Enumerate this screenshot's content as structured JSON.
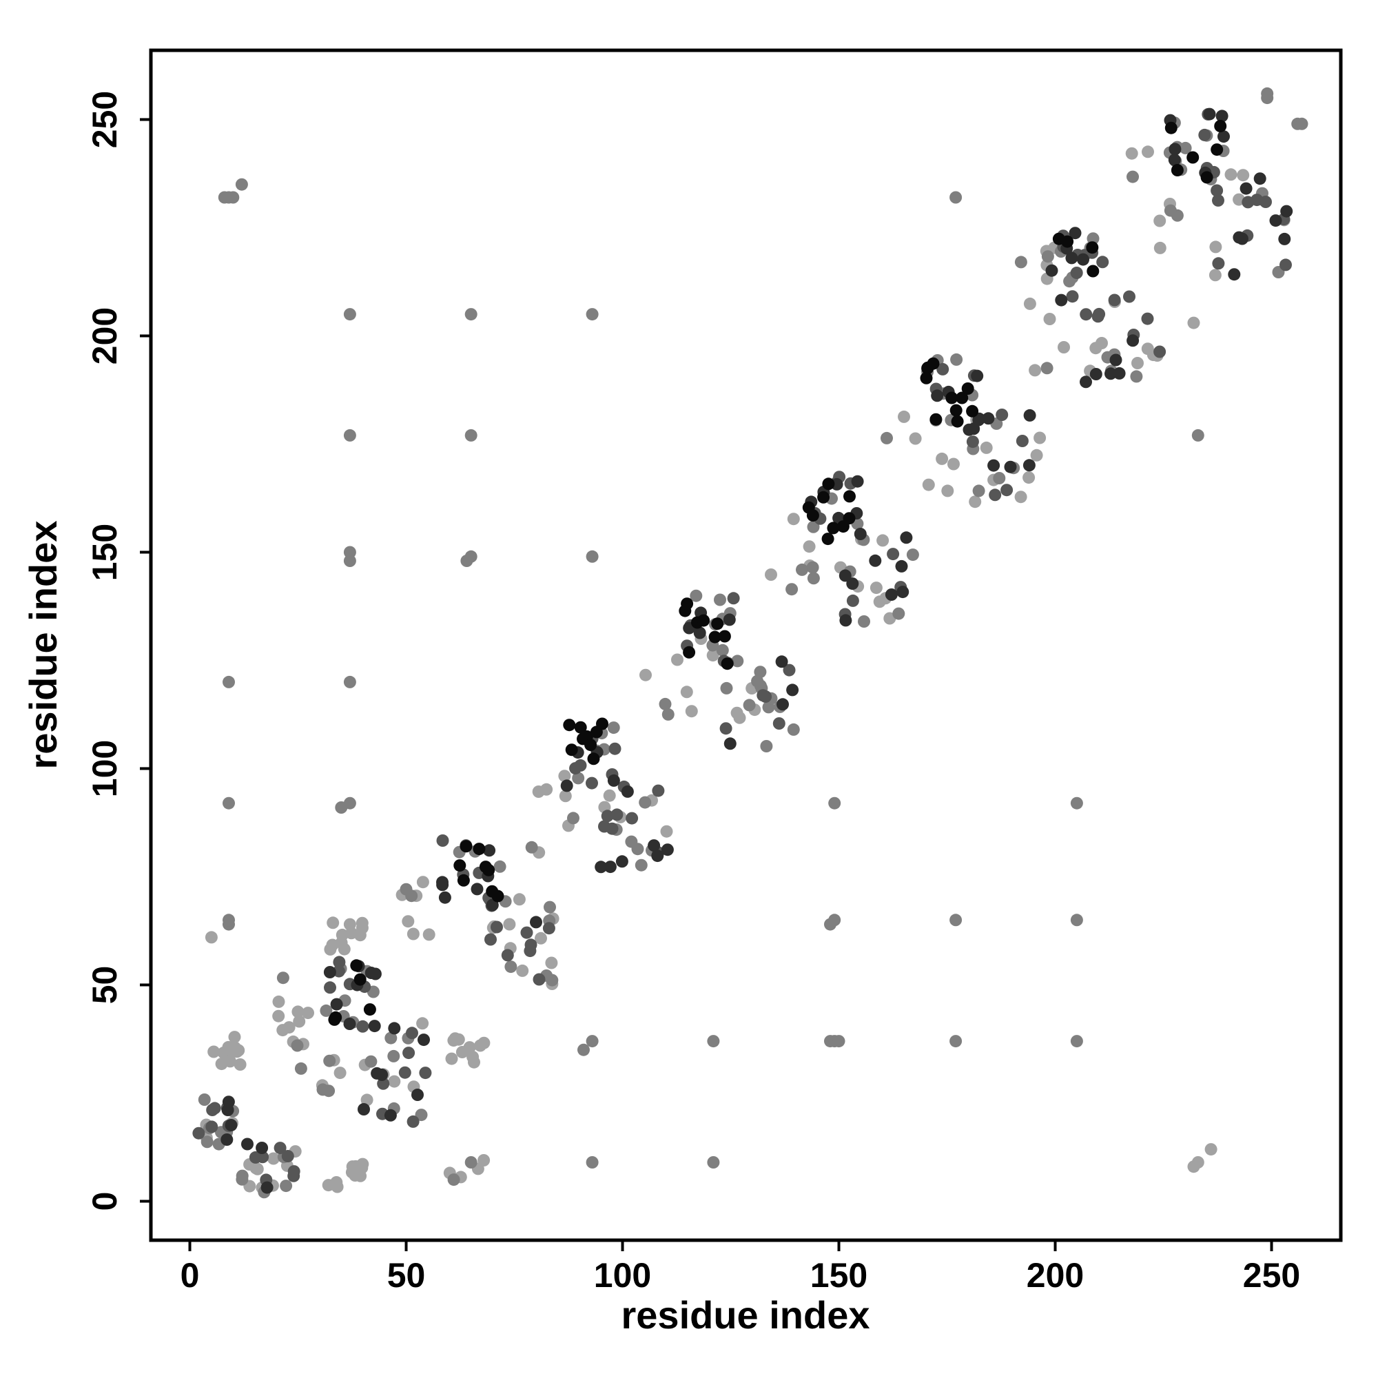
{
  "chart_data": {
    "type": "scatter",
    "title": "",
    "xlabel": "residue index",
    "ylabel": "residue index",
    "xlim": [
      -9,
      266
    ],
    "ylim": [
      -9,
      266
    ],
    "x_ticks": [
      "0",
      "50",
      "100",
      "150",
      "250"
    ],
    "x_tick_values": [
      0,
      50,
      100,
      150,
      250
    ],
    "x_tick_200": "200",
    "y_ticks": [
      "0",
      "50",
      "100",
      "150",
      "200",
      "250"
    ],
    "y_tick_values": [
      0,
      50,
      100,
      150,
      200,
      250
    ],
    "grid": false,
    "legend": "none",
    "point_colors": {
      "black": "#0a0a0a",
      "dark": "#2e2e2e",
      "mid": "#565656",
      "grey": "#7f7f7f",
      "light": "#a2a2a2"
    },
    "clusters": [
      {
        "x": [
          2,
          10
        ],
        "y": [
          12,
          25
        ],
        "level": "dark",
        "n": 22
      },
      {
        "x": [
          4,
          12
        ],
        "y": [
          30,
          38
        ],
        "level": "light",
        "n": 12
      },
      {
        "x": [
          12,
          27
        ],
        "y": [
          2,
          14
        ],
        "level": "dark",
        "n": 24
      },
      {
        "x": [
          18,
          28
        ],
        "y": [
          30,
          52
        ],
        "level": "grey",
        "n": 12
      },
      {
        "x": [
          31,
          43
        ],
        "y": [
          40,
          56
        ],
        "level": "black",
        "n": 26
      },
      {
        "x": [
          32,
          40
        ],
        "y": [
          3,
          10
        ],
        "level": "light",
        "n": 12
      },
      {
        "x": [
          32,
          40
        ],
        "y": [
          58,
          66
        ],
        "level": "light",
        "n": 10
      },
      {
        "x": [
          30,
          38
        ],
        "y": [
          24,
          34
        ],
        "level": "grey",
        "n": 6
      },
      {
        "x": [
          40,
          55
        ],
        "y": [
          18,
          42
        ],
        "level": "dark",
        "n": 26
      },
      {
        "x": [
          49,
          56
        ],
        "y": [
          58,
          75
        ],
        "level": "grey",
        "n": 8
      },
      {
        "x": [
          58,
          72
        ],
        "y": [
          68,
          84
        ],
        "level": "black",
        "n": 24
      },
      {
        "x": [
          59,
          68
        ],
        "y": [
          32,
          38
        ],
        "level": "light",
        "n": 10
      },
      {
        "x": [
          60,
          68
        ],
        "y": [
          5,
          10
        ],
        "level": "grey",
        "n": 4
      },
      {
        "x": [
          68,
          85
        ],
        "y": [
          50,
          70
        ],
        "level": "dark",
        "n": 26
      },
      {
        "x": [
          78,
          90
        ],
        "y": [
          80,
          103
        ],
        "level": "grey",
        "n": 8
      },
      {
        "x": [
          87,
          99
        ],
        "y": [
          96,
          112
        ],
        "level": "black",
        "n": 24
      },
      {
        "x": [
          95,
          113
        ],
        "y": [
          77,
          98
        ],
        "level": "dark",
        "n": 26
      },
      {
        "x": [
          105,
          122
        ],
        "y": [
          108,
          131
        ],
        "level": "grey",
        "n": 8
      },
      {
        "x": [
          114,
          126
        ],
        "y": [
          124,
          140
        ],
        "level": "black",
        "n": 24
      },
      {
        "x": [
          123,
          140
        ],
        "y": [
          105,
          126
        ],
        "level": "dark",
        "n": 26
      },
      {
        "x": [
          133,
          145
        ],
        "y": [
          136,
          160
        ],
        "level": "grey",
        "n": 8
      },
      {
        "x": [
          143,
          155
        ],
        "y": [
          152,
          168
        ],
        "level": "black",
        "n": 24
      },
      {
        "x": [
          150,
          168
        ],
        "y": [
          133,
          155
        ],
        "level": "dark",
        "n": 26
      },
      {
        "x": [
          161,
          177
        ],
        "y": [
          164,
          188
        ],
        "level": "grey",
        "n": 8
      },
      {
        "x": [
          170,
          183
        ],
        "y": [
          180,
          196
        ],
        "level": "black",
        "n": 24
      },
      {
        "x": [
          179,
          197
        ],
        "y": [
          161,
          182
        ],
        "level": "dark",
        "n": 26
      },
      {
        "x": [
          189,
          202
        ],
        "y": [
          192,
          224
        ],
        "level": "grey",
        "n": 10
      },
      {
        "x": [
          198,
          211
        ],
        "y": [
          208,
          224
        ],
        "level": "black",
        "n": 24
      },
      {
        "x": [
          207,
          225
        ],
        "y": [
          189,
          210
        ],
        "level": "dark",
        "n": 26
      },
      {
        "x": [
          216,
          230
        ],
        "y": [
          220,
          245
        ],
        "level": "grey",
        "n": 10
      },
      {
        "x": [
          226,
          239
        ],
        "y": [
          236,
          252
        ],
        "level": "black",
        "n": 24
      },
      {
        "x": [
          235,
          254
        ],
        "y": [
          214,
          238
        ],
        "level": "dark",
        "n": 26
      }
    ],
    "points": [
      {
        "x": 5,
        "y": 61,
        "level": "light"
      },
      {
        "x": 9,
        "y": 64,
        "level": "grey"
      },
      {
        "x": 9,
        "y": 65,
        "level": "grey"
      },
      {
        "x": 9,
        "y": 120,
        "level": "grey"
      },
      {
        "x": 9,
        "y": 92,
        "level": "grey"
      },
      {
        "x": 8,
        "y": 232,
        "level": "grey"
      },
      {
        "x": 9,
        "y": 232,
        "level": "grey"
      },
      {
        "x": 10,
        "y": 232,
        "level": "grey"
      },
      {
        "x": 12,
        "y": 235,
        "level": "grey"
      },
      {
        "x": 37,
        "y": 205,
        "level": "grey"
      },
      {
        "x": 37,
        "y": 177,
        "level": "grey"
      },
      {
        "x": 37,
        "y": 150,
        "level": "grey"
      },
      {
        "x": 37,
        "y": 148,
        "level": "grey"
      },
      {
        "x": 37,
        "y": 120,
        "level": "grey"
      },
      {
        "x": 37,
        "y": 92,
        "level": "grey"
      },
      {
        "x": 35,
        "y": 91,
        "level": "grey"
      },
      {
        "x": 37,
        "y": 64,
        "level": "light"
      },
      {
        "x": 65,
        "y": 205,
        "level": "grey"
      },
      {
        "x": 65,
        "y": 177,
        "level": "grey"
      },
      {
        "x": 65,
        "y": 149,
        "level": "grey"
      },
      {
        "x": 64,
        "y": 148,
        "level": "grey"
      },
      {
        "x": 65,
        "y": 9,
        "level": "grey"
      },
      {
        "x": 61,
        "y": 5,
        "level": "grey"
      },
      {
        "x": 93,
        "y": 205,
        "level": "grey"
      },
      {
        "x": 93,
        "y": 149,
        "level": "grey"
      },
      {
        "x": 93,
        "y": 37,
        "level": "grey"
      },
      {
        "x": 91,
        "y": 35,
        "level": "grey"
      },
      {
        "x": 93,
        "y": 9,
        "level": "grey"
      },
      {
        "x": 121,
        "y": 37,
        "level": "grey"
      },
      {
        "x": 121,
        "y": 9,
        "level": "grey"
      },
      {
        "x": 149,
        "y": 92,
        "level": "grey"
      },
      {
        "x": 149,
        "y": 65,
        "level": "grey"
      },
      {
        "x": 148,
        "y": 64,
        "level": "grey"
      },
      {
        "x": 148,
        "y": 37,
        "level": "grey"
      },
      {
        "x": 149,
        "y": 37,
        "level": "grey"
      },
      {
        "x": 150,
        "y": 37,
        "level": "grey"
      },
      {
        "x": 177,
        "y": 65,
        "level": "grey"
      },
      {
        "x": 177,
        "y": 37,
        "level": "grey"
      },
      {
        "x": 177,
        "y": 232,
        "level": "grey"
      },
      {
        "x": 205,
        "y": 92,
        "level": "grey"
      },
      {
        "x": 205,
        "y": 65,
        "level": "grey"
      },
      {
        "x": 205,
        "y": 37,
        "level": "grey"
      },
      {
        "x": 232,
        "y": 203,
        "level": "light"
      },
      {
        "x": 233,
        "y": 177,
        "level": "grey"
      },
      {
        "x": 232,
        "y": 8,
        "level": "light"
      },
      {
        "x": 233,
        "y": 9,
        "level": "light"
      },
      {
        "x": 236,
        "y": 12,
        "level": "light"
      },
      {
        "x": 249,
        "y": 255,
        "level": "grey"
      },
      {
        "x": 249,
        "y": 256,
        "level": "grey"
      },
      {
        "x": 256,
        "y": 249,
        "level": "grey"
      },
      {
        "x": 257,
        "y": 249,
        "level": "grey"
      }
    ]
  }
}
